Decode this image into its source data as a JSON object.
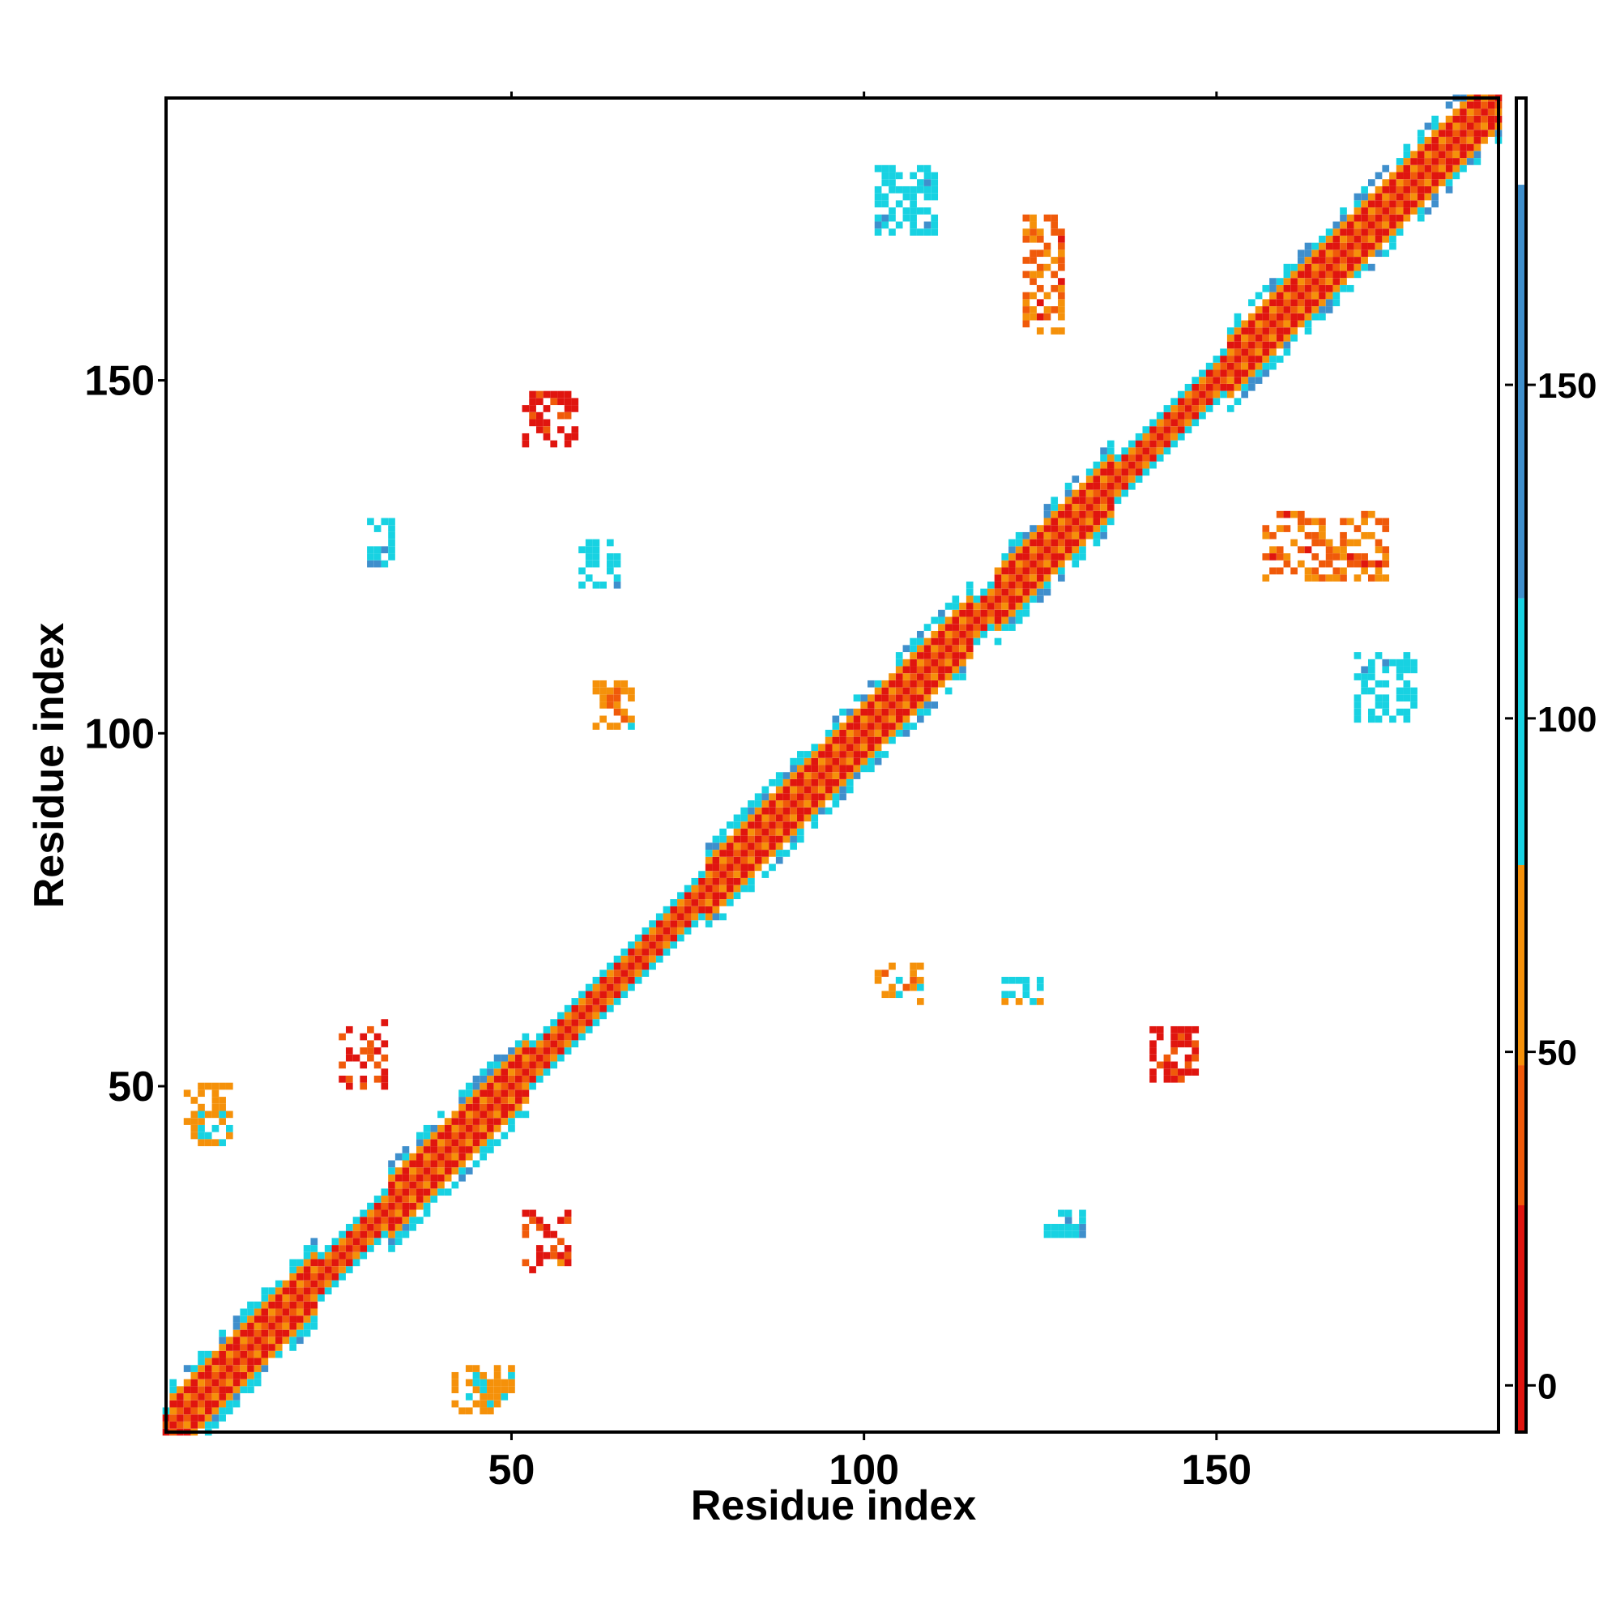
{
  "chart_data": {
    "type": "heatmap",
    "title": "",
    "xlabel": "Residue index",
    "ylabel": "Residue index",
    "xlim": [
      1,
      190
    ],
    "ylim": [
      1,
      190
    ],
    "x_ticks": [
      "50",
      "100",
      "150"
    ],
    "y_ticks": [
      "50",
      "100",
      "150"
    ],
    "x_tick_values": [
      50,
      100,
      150
    ],
    "y_tick_values": [
      50,
      100,
      150
    ],
    "grid": false,
    "colorbar": {
      "ticks": [
        "0",
        "50",
        "100",
        "150"
      ],
      "tick_values": [
        0,
        50,
        100,
        150
      ],
      "range": [
        -7,
        193
      ],
      "bands": [
        {
          "from": -7,
          "to": 27,
          "color": "#e0150f"
        },
        {
          "from": 27,
          "to": 48,
          "color": "#f05a0a"
        },
        {
          "from": 48,
          "to": 78,
          "color": "#f5910a"
        },
        {
          "from": 78,
          "to": 118,
          "color": "#18d2e2"
        },
        {
          "from": 118,
          "to": 180,
          "color": "#3f8fcc"
        },
        {
          "from": 180,
          "to": 193,
          "color": "#ffffff"
        }
      ]
    },
    "diagonal": {
      "start": 1,
      "end": 190
    },
    "helix_segments": [
      {
        "start": 2,
        "end": 22
      },
      {
        "start": 33,
        "end": 52
      },
      {
        "start": 78,
        "end": 115
      },
      {
        "start": 119,
        "end": 135
      },
      {
        "start": 152,
        "end": 190
      }
    ],
    "contact_clusters": [
      {
        "x": [
          26,
          32
        ],
        "y": [
          50,
          59
        ],
        "value": 25
      },
      {
        "x": [
          52,
          58
        ],
        "y": [
          24,
          32
        ],
        "value": 30
      },
      {
        "x": [
          52,
          59
        ],
        "y": [
          141,
          148
        ],
        "value": 20
      },
      {
        "x": [
          141,
          147
        ],
        "y": [
          51,
          58
        ],
        "value": 18
      },
      {
        "x": [
          120,
          125
        ],
        "y": [
          62,
          65
        ],
        "value": 95
      },
      {
        "x": [
          60,
          65
        ],
        "y": [
          121,
          127
        ],
        "value": 100
      },
      {
        "x": [
          123,
          128
        ],
        "y": [
          157,
          173
        ],
        "value": 45
      },
      {
        "x": [
          157,
          174
        ],
        "y": [
          122,
          131
        ],
        "value": 45
      },
      {
        "x": [
          102,
          110
        ],
        "y": [
          171,
          180
        ],
        "value": 100
      },
      {
        "x": [
          170,
          178
        ],
        "y": [
          102,
          111
        ],
        "value": 100
      },
      {
        "x": [
          62,
          67
        ],
        "y": [
          101,
          107
        ],
        "value": 60
      },
      {
        "x": [
          102,
          108
        ],
        "y": [
          62,
          67
        ],
        "value": 60
      },
      {
        "x": [
          42,
          50
        ],
        "y": [
          4,
          10
        ],
        "value": 70
      },
      {
        "x": [
          4,
          10
        ],
        "y": [
          42,
          50
        ],
        "value": 70
      },
      {
        "x": [
          126,
          131
        ],
        "y": [
          29,
          32
        ],
        "value": 100
      },
      {
        "x": [
          30,
          33
        ],
        "y": [
          124,
          130
        ],
        "value": 110
      }
    ]
  }
}
